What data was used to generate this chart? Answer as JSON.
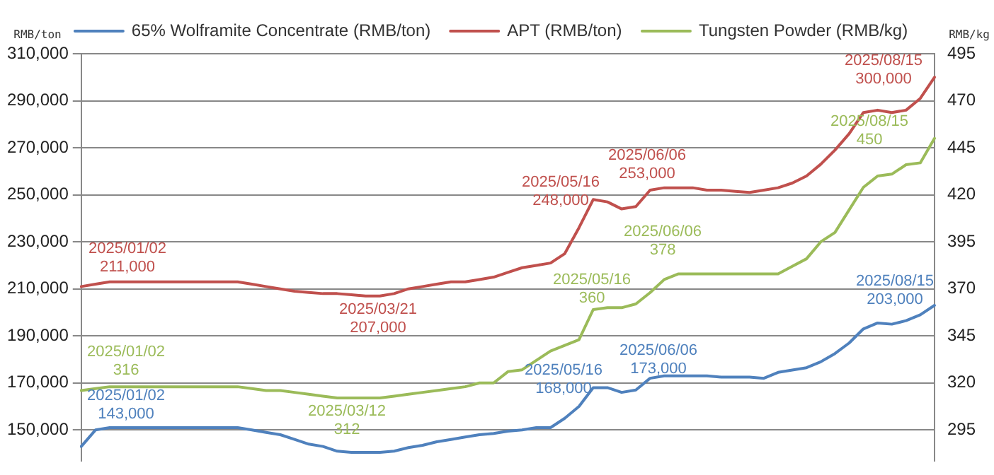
{
  "chart_data": {
    "type": "line",
    "ylabel": "RMB/ton",
    "y2label": "RMB/kg",
    "categories": [
      null,
      null,
      null,
      null,
      null,
      null,
      null,
      null,
      null,
      null,
      null,
      null,
      null,
      null,
      null,
      null,
      null,
      null,
      null,
      null,
      null,
      null,
      null,
      null,
      null,
      null,
      null,
      null,
      null,
      null,
      null,
      null,
      null,
      null,
      null,
      null,
      null,
      null,
      null,
      null,
      null,
      null,
      null,
      null,
      null,
      null,
      null,
      null,
      null,
      null,
      null,
      null,
      null,
      null,
      null,
      null,
      null,
      null,
      null,
      null,
      null
    ],
    "series": [
      {
        "name": "65% Wolframite Concentrate (RMB/ton)",
        "color": "#4f81bd",
        "values": [
          143000,
          150000,
          151000,
          151000,
          151000,
          151000,
          151000,
          151000,
          151000,
          151000,
          151000,
          151000,
          150000,
          149000,
          148000,
          146000,
          144000,
          143000,
          141000,
          140500,
          140500,
          140500,
          141000,
          142500,
          143500,
          145000,
          146000,
          147000,
          148000,
          148500,
          149500,
          150000,
          151000,
          151000,
          155000,
          160000,
          168000,
          168000,
          166000,
          167000,
          172000,
          173000,
          173000,
          173000,
          173000,
          172500,
          172500,
          172500,
          172000,
          174500,
          175500,
          176500,
          179000,
          182500,
          187000,
          193000,
          195500,
          195000,
          196500,
          199000,
          203000
        ]
      },
      {
        "name": "APT (RMB/ton)",
        "color": "#c0504d",
        "values": [
          211000,
          212000,
          213000,
          213000,
          213000,
          213000,
          213000,
          213000,
          213000,
          213000,
          213000,
          213000,
          212000,
          211000,
          210000,
          209000,
          208500,
          208000,
          208000,
          207500,
          207000,
          207000,
          208000,
          210000,
          211000,
          212000,
          213000,
          213000,
          214000,
          215000,
          217000,
          219000,
          220000,
          221000,
          225000,
          236000,
          248000,
          247000,
          244000,
          245000,
          252000,
          253000,
          253000,
          253000,
          252000,
          252000,
          251500,
          251000,
          252000,
          253000,
          255000,
          258000,
          263000,
          269000,
          276000,
          285000,
          286000,
          285000,
          286000,
          291000,
          300000
        ]
      },
      {
        "name": "Tungsten Powder (RMB/kg)",
        "color": "#9bbb59",
        "axis": "y2",
        "values": [
          316,
          317,
          318,
          318,
          318,
          318,
          318,
          318,
          318,
          318,
          318,
          318,
          317,
          316,
          316,
          315,
          314,
          313,
          312,
          312,
          312,
          312,
          313,
          314,
          315,
          316,
          317,
          318,
          320,
          320,
          326,
          327,
          332,
          337,
          340,
          343,
          359,
          360,
          360,
          362,
          368,
          375,
          378,
          378,
          378,
          378,
          378,
          378,
          378,
          378,
          382,
          386,
          395,
          400,
          412,
          424,
          430,
          431,
          436,
          437,
          450
        ]
      }
    ],
    "ylim": [
      137000,
      310000
    ],
    "yticks": [
      {
        "value": 150000,
        "label": "150,000"
      },
      {
        "value": 170000,
        "label": "170,000"
      },
      {
        "value": 190000,
        "label": "190,000"
      },
      {
        "value": 210000,
        "label": "210,000"
      },
      {
        "value": 230000,
        "label": "230,000"
      },
      {
        "value": 250000,
        "label": "250,000"
      },
      {
        "value": 270000,
        "label": "270,000"
      },
      {
        "value": 290000,
        "label": "290,000"
      },
      {
        "value": 310000,
        "label": "310,000"
      }
    ],
    "y2lim": [
      278.75,
      495
    ],
    "y2ticks": [
      295,
      320,
      345,
      370,
      395,
      420,
      445,
      470,
      495
    ],
    "grid": "y",
    "legend": "top",
    "marker": "none",
    "line_style": "solid",
    "tick_labels": "y",
    "annotations": [
      "2025/01/02\n211,000",
      "2025/03/21\n207,000",
      "2025/05/16\n248,000",
      "2025/06/06\n253,000",
      "2025/08/15\n300,000",
      "2025/01/02\n316",
      "2025/03/12\n312",
      "2025/05/16\n360",
      "2025/06/06\n378",
      "2025/08/15\n450",
      "2025/01/02\n143,000",
      "2025/05/16\n168,000",
      "2025/06/06\n173,000",
      "2025/08/15\n203,000"
    ]
  }
}
